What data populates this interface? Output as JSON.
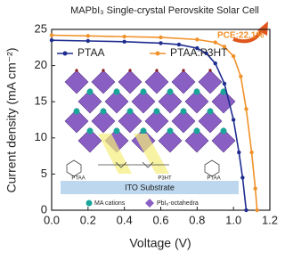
{
  "chart_data": {
    "type": "line",
    "title": "MAPbI₃ Single-crystal Perovskite Solar Cell",
    "x_label": "Voltage (V)",
    "y_label": "Current density (mA cm⁻²)",
    "annotation": "PCE:22.1%",
    "xlim": [
      0,
      1.2
    ],
    "xticks": [
      {
        "value": 0,
        "label": "0.0"
      },
      {
        "value": 0.2,
        "label": "0.2"
      },
      {
        "value": 0.4,
        "label": "0.4"
      },
      {
        "value": 0.6,
        "label": "0.6"
      },
      {
        "value": 0.8,
        "label": "0.8"
      },
      {
        "value": 1.0,
        "label": "1.0"
      },
      {
        "value": 1.2,
        "label": "1.2"
      }
    ],
    "ylim": [
      0,
      25
    ],
    "yticks": [
      0,
      5,
      10,
      15,
      20,
      25
    ],
    "legend": "top",
    "series": [
      {
        "name": "PTAA",
        "color": "#1f2d8f",
        "x": [
          0,
          0.2,
          0.4,
          0.6,
          0.7,
          0.8,
          0.85,
          0.9,
          0.95,
          1.0,
          1.03,
          1.05,
          1.07
        ],
        "values": [
          23.5,
          23.4,
          23.3,
          23.1,
          22.9,
          22.4,
          21.7,
          20.3,
          17.5,
          12.5,
          8,
          4.5,
          0
        ]
      },
      {
        "name": "PTAA:P3HT",
        "color": "#f0922b",
        "x": [
          0,
          0.2,
          0.4,
          0.6,
          0.8,
          0.9,
          0.95,
          1.0,
          1.04,
          1.07,
          1.1,
          1.12,
          1.13
        ],
        "values": [
          24.2,
          24.1,
          24.0,
          23.9,
          23.6,
          23.2,
          22.6,
          21.3,
          18.5,
          14,
          8,
          3,
          0
        ]
      }
    ]
  },
  "inset": {
    "substrate": "ITO Substrate",
    "cations": "MA cations",
    "octahedra": "PbI₆-octahedra",
    "molecules": [
      "PTAA",
      "P3HT",
      "PTAA"
    ]
  }
}
